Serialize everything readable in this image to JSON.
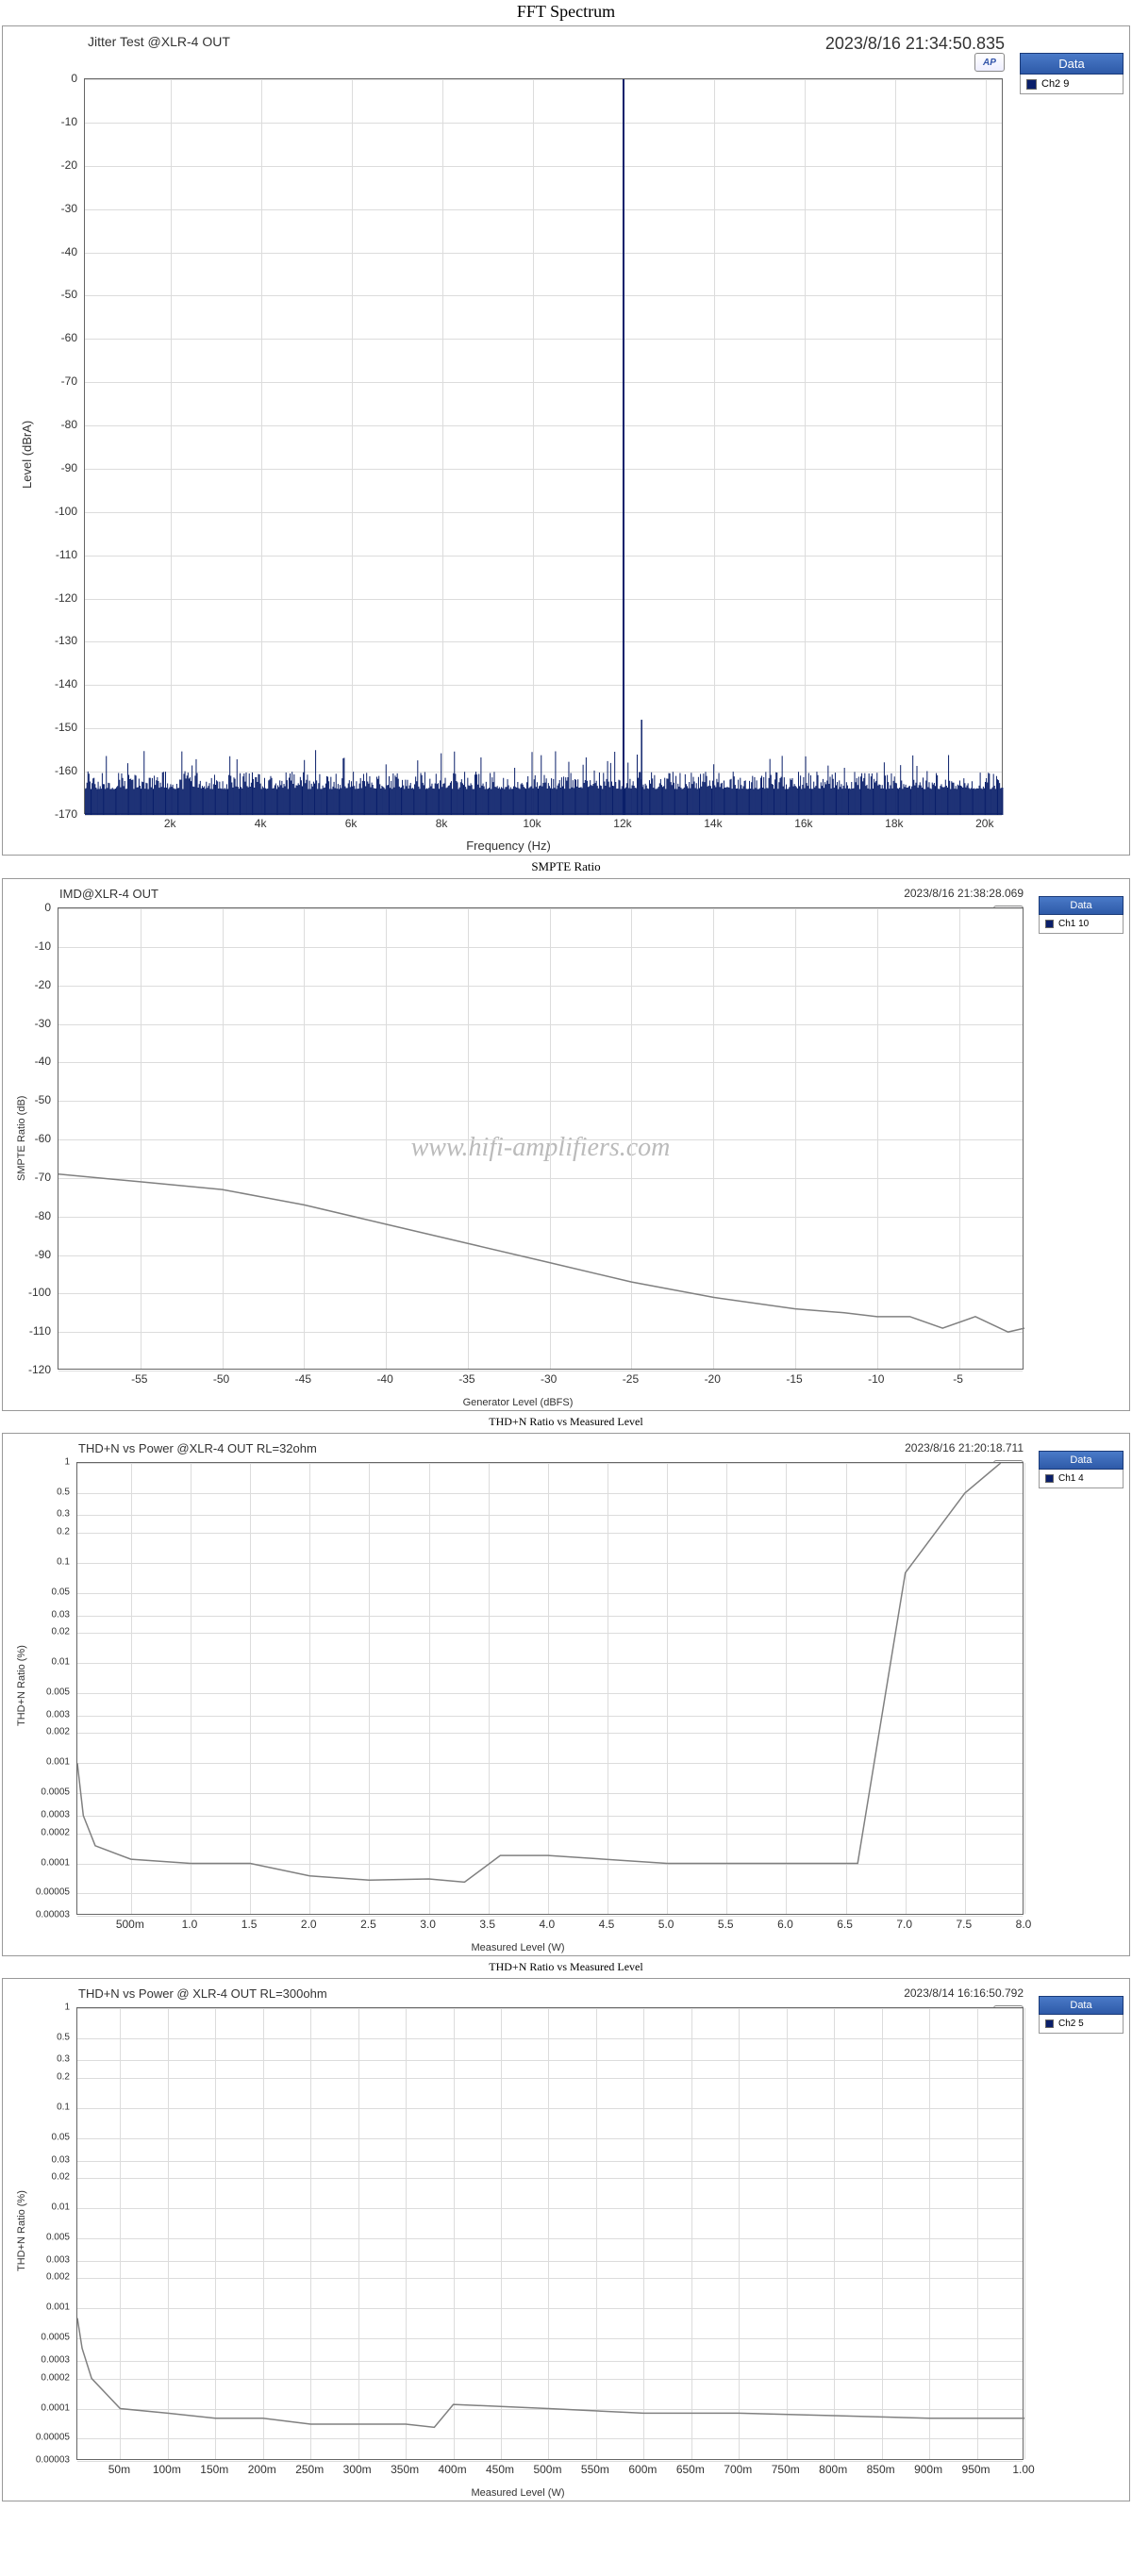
{
  "colors": {
    "series": "#0a1f6a",
    "series_gray": "#808080",
    "grid": "#dcdcdc",
    "plot_border": "#666666",
    "legend_header_bg": "#3766b8",
    "legend_header_text": "#ffffff"
  },
  "watermark": "www.hifi-amplifiers.com",
  "legend_label": "Data",
  "charts": [
    {
      "id": "chart1",
      "title": "FFT Spectrum",
      "subtitle": "Jitter Test @XLR-4 OUT",
      "timestamp": "2023/8/16 21:34:50.835",
      "legend_item": "Ch2 9",
      "ylabel": "Level (dBrA)",
      "xlabel": "Frequency (Hz)",
      "ylim": [
        -170,
        0
      ],
      "ytick_step": 10,
      "xticks": [
        2000,
        4000,
        6000,
        8000,
        10000,
        12000,
        14000,
        16000,
        18000,
        20000
      ],
      "xlim": [
        100,
        20400
      ],
      "spike_x": 12000,
      "noise_floor": -164,
      "noise_floor_peak": -155,
      "spike_small_at": 12400,
      "spike_small_level": -148
    },
    {
      "id": "chart2",
      "title": "SMPTE Ratio",
      "subtitle": "IMD@XLR-4 OUT",
      "timestamp": "2023/8/16 21:38:28.069",
      "legend_item": "Ch1 10",
      "ylabel": "SMPTE Ratio (dB)",
      "xlabel": "Generator Level (dBFS)",
      "ylim": [
        -120,
        0
      ],
      "ytick_step": 10,
      "xticks": [
        -55,
        -50,
        -45,
        -40,
        -35,
        -30,
        -25,
        -20,
        -15,
        -10,
        -5
      ],
      "xlim": [
        -60,
        -1
      ],
      "line": [
        [
          -60,
          -69
        ],
        [
          -55,
          -71
        ],
        [
          -50,
          -73
        ],
        [
          -45,
          -77
        ],
        [
          -40,
          -82
        ],
        [
          -35,
          -87
        ],
        [
          -30,
          -92
        ],
        [
          -25,
          -97
        ],
        [
          -20,
          -101
        ],
        [
          -15,
          -104
        ],
        [
          -12,
          -105
        ],
        [
          -10,
          -106
        ],
        [
          -8,
          -106
        ],
        [
          -6,
          -109
        ],
        [
          -4,
          -106
        ],
        [
          -2,
          -110
        ],
        [
          -1,
          -109
        ]
      ]
    },
    {
      "id": "chart3",
      "title": "THD+N Ratio vs Measured Level",
      "subtitle": "THD+N vs Power @XLR-4 OUT RL=32ohm",
      "timestamp": "2023/8/16 21:20:18.711",
      "legend_item": "Ch1 4",
      "ylabel": "THD+N Ratio (%)",
      "xlabel": "Measured Level (W)",
      "log_y": true,
      "ylim_log": [
        3e-05,
        1
      ],
      "y_ticks_log": [
        3e-05,
        5e-05,
        0.0001,
        0.0002,
        0.0003,
        0.0005,
        0.001,
        0.002,
        0.003,
        0.005,
        0.01,
        0.02,
        0.03,
        0.05,
        0.1,
        0.2,
        0.3,
        0.5,
        1
      ],
      "xticks": [
        0.5,
        1.0,
        1.5,
        2.0,
        2.5,
        3.0,
        3.5,
        4.0,
        4.5,
        5.0,
        5.5,
        6.0,
        6.5,
        7.0,
        7.5,
        8.0
      ],
      "xticks_fmt": [
        "500m",
        "1.0",
        "1.5",
        "2.0",
        "2.5",
        "3.0",
        "3.5",
        "4.0",
        "4.5",
        "5.0",
        "5.5",
        "6.0",
        "6.5",
        "7.0",
        "7.5",
        "8.0"
      ],
      "xlim": [
        0.05,
        8.0
      ],
      "line": [
        [
          0.05,
          0.001
        ],
        [
          0.1,
          0.0003
        ],
        [
          0.2,
          0.00015
        ],
        [
          0.5,
          0.00011
        ],
        [
          1.0,
          0.0001
        ],
        [
          1.5,
          0.0001
        ],
        [
          2.0,
          7.5e-05
        ],
        [
          2.5,
          6.8e-05
        ],
        [
          3.0,
          7e-05
        ],
        [
          3.3,
          6.5e-05
        ],
        [
          3.6,
          0.00012
        ],
        [
          4.0,
          0.00012
        ],
        [
          5.0,
          0.0001
        ],
        [
          6.0,
          0.0001
        ],
        [
          6.5,
          0.0001
        ],
        [
          6.6,
          0.0001
        ],
        [
          7.0,
          0.08
        ],
        [
          7.5,
          0.5
        ],
        [
          7.8,
          1.0
        ]
      ]
    },
    {
      "id": "chart4",
      "title": "THD+N Ratio vs Measured Level",
      "subtitle": "THD+N vs Power @ XLR-4 OUT RL=300ohm",
      "timestamp": "2023/8/14 16:16:50.792",
      "legend_item": "Ch2 5",
      "ylabel": "THD+N Ratio (%)",
      "xlabel": "Measured Level (W)",
      "log_y": true,
      "ylim_log": [
        3e-05,
        1
      ],
      "y_ticks_log": [
        3e-05,
        5e-05,
        0.0001,
        0.0002,
        0.0003,
        0.0005,
        0.001,
        0.002,
        0.003,
        0.005,
        0.01,
        0.02,
        0.03,
        0.05,
        0.1,
        0.2,
        0.3,
        0.5,
        1
      ],
      "xticks": [
        0.05,
        0.1,
        0.15,
        0.2,
        0.25,
        0.3,
        0.35,
        0.4,
        0.45,
        0.5,
        0.55,
        0.6,
        0.65,
        0.7,
        0.75,
        0.8,
        0.85,
        0.9,
        0.95,
        1.0
      ],
      "xticks_fmt": [
        "50m",
        "100m",
        "150m",
        "200m",
        "250m",
        "300m",
        "350m",
        "400m",
        "450m",
        "500m",
        "550m",
        "600m",
        "650m",
        "700m",
        "750m",
        "800m",
        "850m",
        "900m",
        "950m",
        "1.00"
      ],
      "xlim": [
        0.005,
        1.0
      ],
      "line": [
        [
          0.005,
          0.0008
        ],
        [
          0.01,
          0.0004
        ],
        [
          0.02,
          0.0002
        ],
        [
          0.05,
          0.0001
        ],
        [
          0.1,
          9e-05
        ],
        [
          0.15,
          8e-05
        ],
        [
          0.2,
          8e-05
        ],
        [
          0.25,
          7e-05
        ],
        [
          0.3,
          7e-05
        ],
        [
          0.35,
          7e-05
        ],
        [
          0.38,
          6.5e-05
        ],
        [
          0.4,
          0.00011
        ],
        [
          0.5,
          0.0001
        ],
        [
          0.6,
          9e-05
        ],
        [
          0.7,
          9e-05
        ],
        [
          0.8,
          8.5e-05
        ],
        [
          0.9,
          8e-05
        ],
        [
          1.0,
          8e-05
        ]
      ]
    }
  ]
}
